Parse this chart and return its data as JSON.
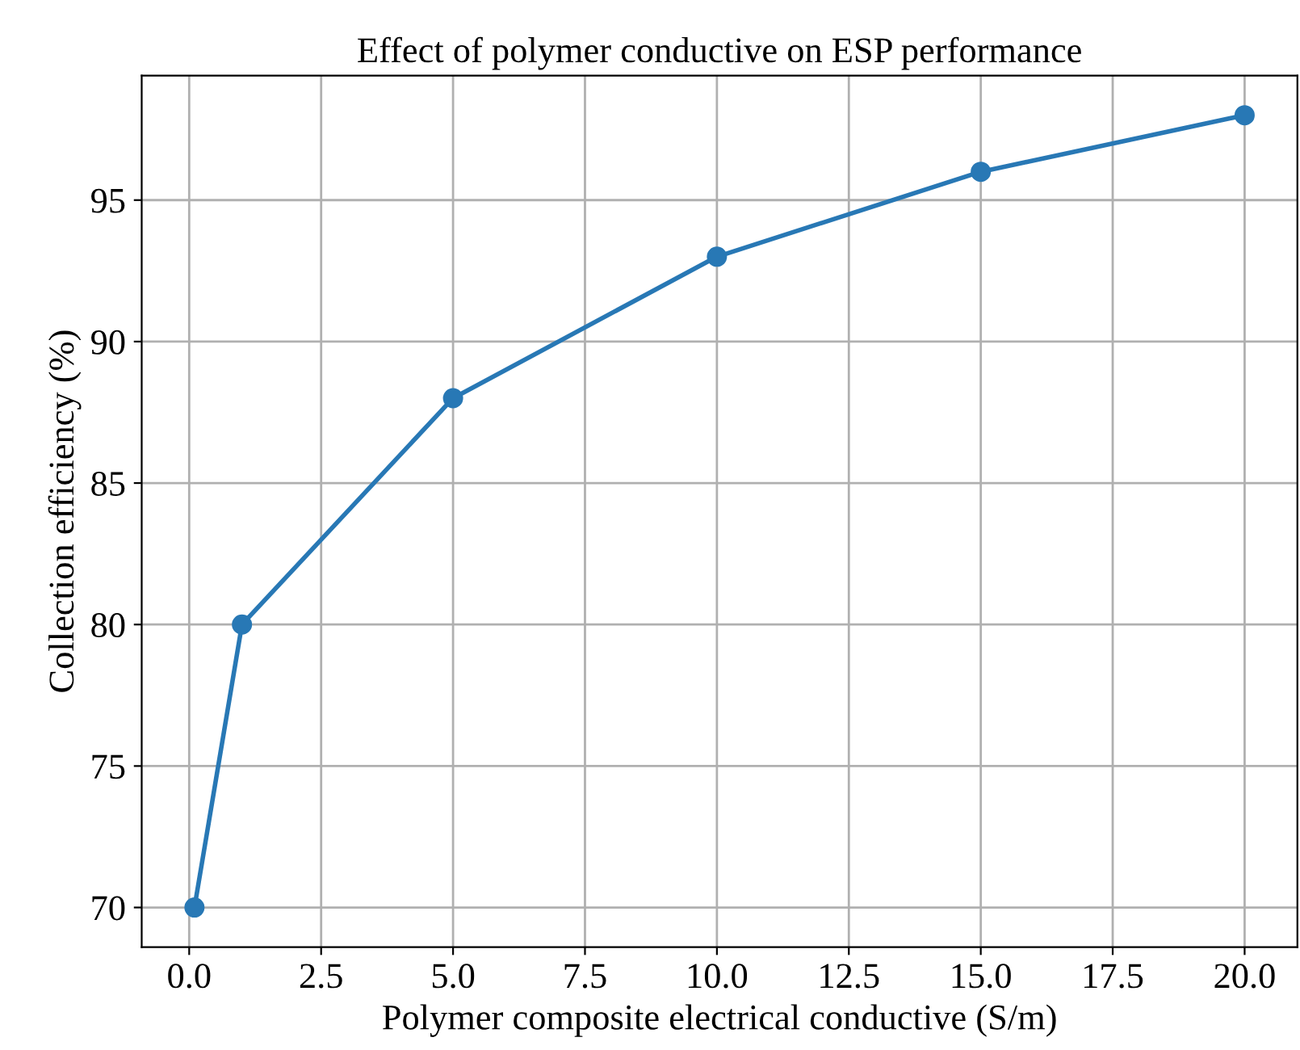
{
  "chart_data": {
    "type": "line",
    "title": "Effect of polymer conductive on ESP performance",
    "xlabel": "Polymer composite electrical conductive (S/m)",
    "ylabel": "Collection efficiency (%)",
    "x": [
      0.1,
      1,
      5,
      10,
      15,
      20
    ],
    "series": [
      {
        "color": "#2878b5",
        "values": [
          70,
          80,
          88,
          93,
          96,
          98
        ]
      }
    ],
    "xlim": [
      -0.9,
      21.0
    ],
    "ylim": [
      68.6,
      99.4
    ],
    "xticks": [
      {
        "value": 0,
        "label": "0.0"
      },
      {
        "value": 2.5,
        "label": "2.5"
      },
      {
        "value": 5,
        "label": "5.0"
      },
      {
        "value": 7.5,
        "label": "7.5"
      },
      {
        "value": 10,
        "label": "10.0"
      },
      {
        "value": 12.5,
        "label": "12.5"
      },
      {
        "value": 15,
        "label": "15.0"
      },
      {
        "value": 17.5,
        "label": "17.5"
      },
      {
        "value": 20,
        "label": "20.0"
      }
    ],
    "yticks": [
      70,
      75,
      80,
      85,
      90,
      95
    ],
    "grid": true,
    "marker": "circle",
    "line_style": "solid",
    "legend": false
  }
}
